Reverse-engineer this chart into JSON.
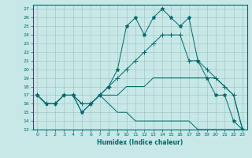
{
  "xlabel": "Humidex (Indice chaleur)",
  "xlim": [
    -0.5,
    23.5
  ],
  "ylim": [
    13,
    27.5
  ],
  "yticks": [
    13,
    14,
    15,
    16,
    17,
    18,
    19,
    20,
    21,
    22,
    23,
    24,
    25,
    26,
    27
  ],
  "xticks": [
    0,
    1,
    2,
    3,
    4,
    5,
    6,
    7,
    8,
    9,
    10,
    11,
    12,
    13,
    14,
    15,
    16,
    17,
    18,
    19,
    20,
    21,
    22,
    23
  ],
  "background_color": "#c8e8e8",
  "grid_color": "#a0c8c8",
  "line_color": "#006868",
  "lines": [
    {
      "x": [
        0,
        1,
        2,
        3,
        4,
        5,
        6,
        7,
        8,
        9,
        10,
        11,
        12,
        13,
        14,
        15,
        16,
        17,
        18,
        19,
        20,
        21,
        22,
        23
      ],
      "y": [
        17,
        16,
        16,
        17,
        17,
        15,
        16,
        17,
        18,
        20,
        25,
        26,
        24,
        26,
        27,
        26,
        25,
        26,
        21,
        19,
        17,
        17,
        14,
        13
      ],
      "marker": "*",
      "ms": 3.5
    },
    {
      "x": [
        0,
        1,
        2,
        3,
        4,
        5,
        6,
        7,
        8,
        9,
        10,
        11,
        12,
        13,
        14,
        15,
        16,
        17,
        18,
        19,
        20,
        21,
        22,
        23
      ],
      "y": [
        17,
        16,
        16,
        17,
        17,
        16,
        16,
        17,
        18,
        19,
        20,
        21,
        22,
        23,
        24,
        24,
        24,
        21,
        21,
        20,
        19,
        18,
        17,
        13
      ],
      "marker": "+",
      "ms": 4
    },
    {
      "x": [
        0,
        1,
        2,
        3,
        4,
        5,
        6,
        7,
        8,
        9,
        10,
        11,
        12,
        13,
        14,
        15,
        16,
        17,
        18,
        19,
        20,
        21,
        22,
        23
      ],
      "y": [
        17,
        16,
        16,
        17,
        17,
        16,
        16,
        17,
        17,
        17,
        18,
        18,
        18,
        19,
        19,
        19,
        19,
        19,
        19,
        19,
        19,
        18,
        17,
        13
      ],
      "marker": null,
      "ms": 0
    },
    {
      "x": [
        0,
        1,
        2,
        3,
        4,
        5,
        6,
        7,
        8,
        9,
        10,
        11,
        12,
        13,
        14,
        15,
        16,
        17,
        18,
        19,
        20,
        21,
        22,
        23
      ],
      "y": [
        17,
        16,
        16,
        17,
        17,
        15,
        16,
        17,
        16,
        15,
        15,
        14,
        14,
        14,
        14,
        14,
        14,
        14,
        13,
        13,
        13,
        13,
        13,
        13
      ],
      "marker": null,
      "ms": 0
    }
  ]
}
